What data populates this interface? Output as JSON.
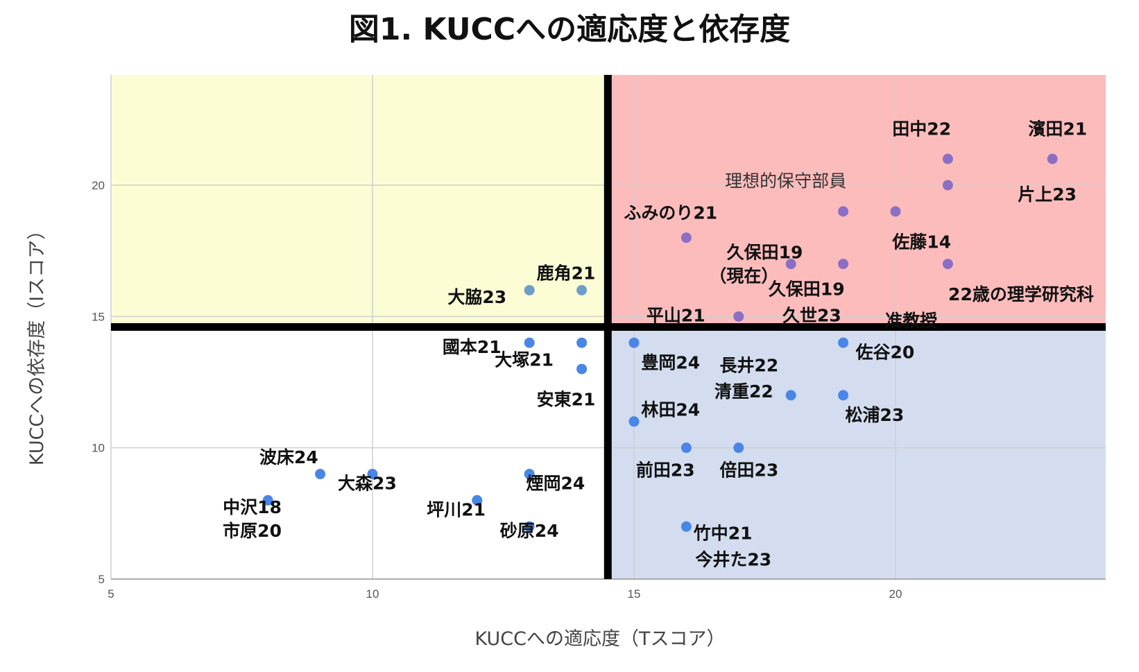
{
  "chart_data": {
    "type": "scatter",
    "title": "図1. KUCCへの適応度と依存度",
    "xlabel": "KUCCへの適応度（Tスコア）",
    "ylabel": "KUCCへの依存度（Iスコア）",
    "xlim": [
      5,
      24
    ],
    "ylim": [
      5,
      24
    ],
    "xticks": [
      5,
      10,
      15,
      20
    ],
    "yticks": [
      5,
      10,
      15,
      20
    ],
    "grid": true,
    "divider": {
      "x": 14.5,
      "y": 14.6
    },
    "quadrant_colors": {
      "top_left": "#fdfdd5",
      "top_right": "#fdbcbc",
      "bottom_left": "#ffffff",
      "bottom_right": "#d3ddef"
    },
    "colors": {
      "point_blue": "#4a86e8",
      "point_purple": "#8a6fc4",
      "point_steel": "#6d9eca",
      "divider": "#000000"
    },
    "points": [
      {
        "x": 23,
        "y": 21,
        "color": "purple"
      },
      {
        "x": 21,
        "y": 21,
        "color": "purple"
      },
      {
        "x": 21,
        "y": 20,
        "color": "purple"
      },
      {
        "x": 19,
        "y": 19,
        "color": "purple"
      },
      {
        "x": 20,
        "y": 19,
        "color": "purple"
      },
      {
        "x": 16,
        "y": 18,
        "color": "purple"
      },
      {
        "x": 18,
        "y": 17,
        "color": "purple"
      },
      {
        "x": 19,
        "y": 17,
        "color": "purple"
      },
      {
        "x": 21,
        "y": 17,
        "color": "purple"
      },
      {
        "x": 17,
        "y": 15,
        "color": "purple"
      },
      {
        "x": 13,
        "y": 16,
        "color": "steel"
      },
      {
        "x": 14,
        "y": 16,
        "color": "steel"
      },
      {
        "x": 13,
        "y": 14,
        "color": "blue"
      },
      {
        "x": 14,
        "y": 14,
        "color": "blue"
      },
      {
        "x": 14,
        "y": 13,
        "color": "blue"
      },
      {
        "x": 15,
        "y": 14,
        "color": "blue"
      },
      {
        "x": 19,
        "y": 14,
        "color": "blue"
      },
      {
        "x": 18,
        "y": 12,
        "color": "blue"
      },
      {
        "x": 19,
        "y": 12,
        "color": "blue"
      },
      {
        "x": 15,
        "y": 11,
        "color": "blue"
      },
      {
        "x": 16,
        "y": 10,
        "color": "blue"
      },
      {
        "x": 17,
        "y": 10,
        "color": "blue"
      },
      {
        "x": 16,
        "y": 7,
        "color": "blue"
      },
      {
        "x": 9,
        "y": 9,
        "color": "blue"
      },
      {
        "x": 10,
        "y": 9,
        "color": "blue"
      },
      {
        "x": 8,
        "y": 8,
        "color": "blue"
      },
      {
        "x": 12,
        "y": 8,
        "color": "blue"
      },
      {
        "x": 13,
        "y": 9,
        "color": "blue"
      },
      {
        "x": 13,
        "y": 7,
        "color": "blue"
      }
    ],
    "labels": [
      {
        "text": "田中22",
        "x": 20.5,
        "y": 22.1
      },
      {
        "text": "濱田21",
        "x": 23.1,
        "y": 22.1
      },
      {
        "text": "理想的保守部員",
        "x": 17.9,
        "y": 20.1,
        "style": "serif"
      },
      {
        "text": "片上23",
        "x": 22.9,
        "y": 19.6
      },
      {
        "text": "ふみのり21",
        "x": 15.7,
        "y": 18.9
      },
      {
        "text": "佐藤14",
        "x": 20.5,
        "y": 17.8
      },
      {
        "text": "久保田19",
        "x": 17.5,
        "y": 17.4
      },
      {
        "text": "（現在）",
        "x": 17.1,
        "y": 16.5
      },
      {
        "text": "鹿角21",
        "x": 13.7,
        "y": 16.6
      },
      {
        "text": "大脇23",
        "x": 12.0,
        "y": 15.7
      },
      {
        "text": "久保田19",
        "x": 18.3,
        "y": 16.0
      },
      {
        "text": "22歳の理学研究科",
        "x": 22.4,
        "y": 15.8
      },
      {
        "text": "平山21",
        "x": 15.8,
        "y": 15.0
      },
      {
        "text": "久世23",
        "x": 18.4,
        "y": 15.0
      },
      {
        "text": "准教授",
        "x": 20.3,
        "y": 14.8
      },
      {
        "text": "國本21",
        "x": 11.9,
        "y": 13.8
      },
      {
        "text": "大塚21",
        "x": 12.9,
        "y": 13.3
      },
      {
        "text": "佐谷20",
        "x": 19.8,
        "y": 13.6
      },
      {
        "text": "豊岡24",
        "x": 15.7,
        "y": 13.2
      },
      {
        "text": "長井22",
        "x": 17.2,
        "y": 13.1
      },
      {
        "text": "清重22",
        "x": 17.1,
        "y": 12.1
      },
      {
        "text": "安東21",
        "x": 13.7,
        "y": 11.8
      },
      {
        "text": "林田24",
        "x": 15.7,
        "y": 11.4
      },
      {
        "text": "松浦23",
        "x": 19.6,
        "y": 11.2
      },
      {
        "text": "波床24",
        "x": 8.4,
        "y": 9.6
      },
      {
        "text": "前田23",
        "x": 15.6,
        "y": 9.1
      },
      {
        "text": "倍田23",
        "x": 17.2,
        "y": 9.1
      },
      {
        "text": "大森23",
        "x": 9.9,
        "y": 8.6
      },
      {
        "text": "煙岡24",
        "x": 13.5,
        "y": 8.6
      },
      {
        "text": "中沢18",
        "x": 7.7,
        "y": 7.7
      },
      {
        "text": "坪川21",
        "x": 11.6,
        "y": 7.6
      },
      {
        "text": "市原20",
        "x": 7.7,
        "y": 6.8
      },
      {
        "text": "砂原24",
        "x": 13.0,
        "y": 6.8
      },
      {
        "text": "竹中21",
        "x": 16.7,
        "y": 6.7
      },
      {
        "text": "今井た23",
        "x": 16.9,
        "y": 5.7
      }
    ]
  }
}
